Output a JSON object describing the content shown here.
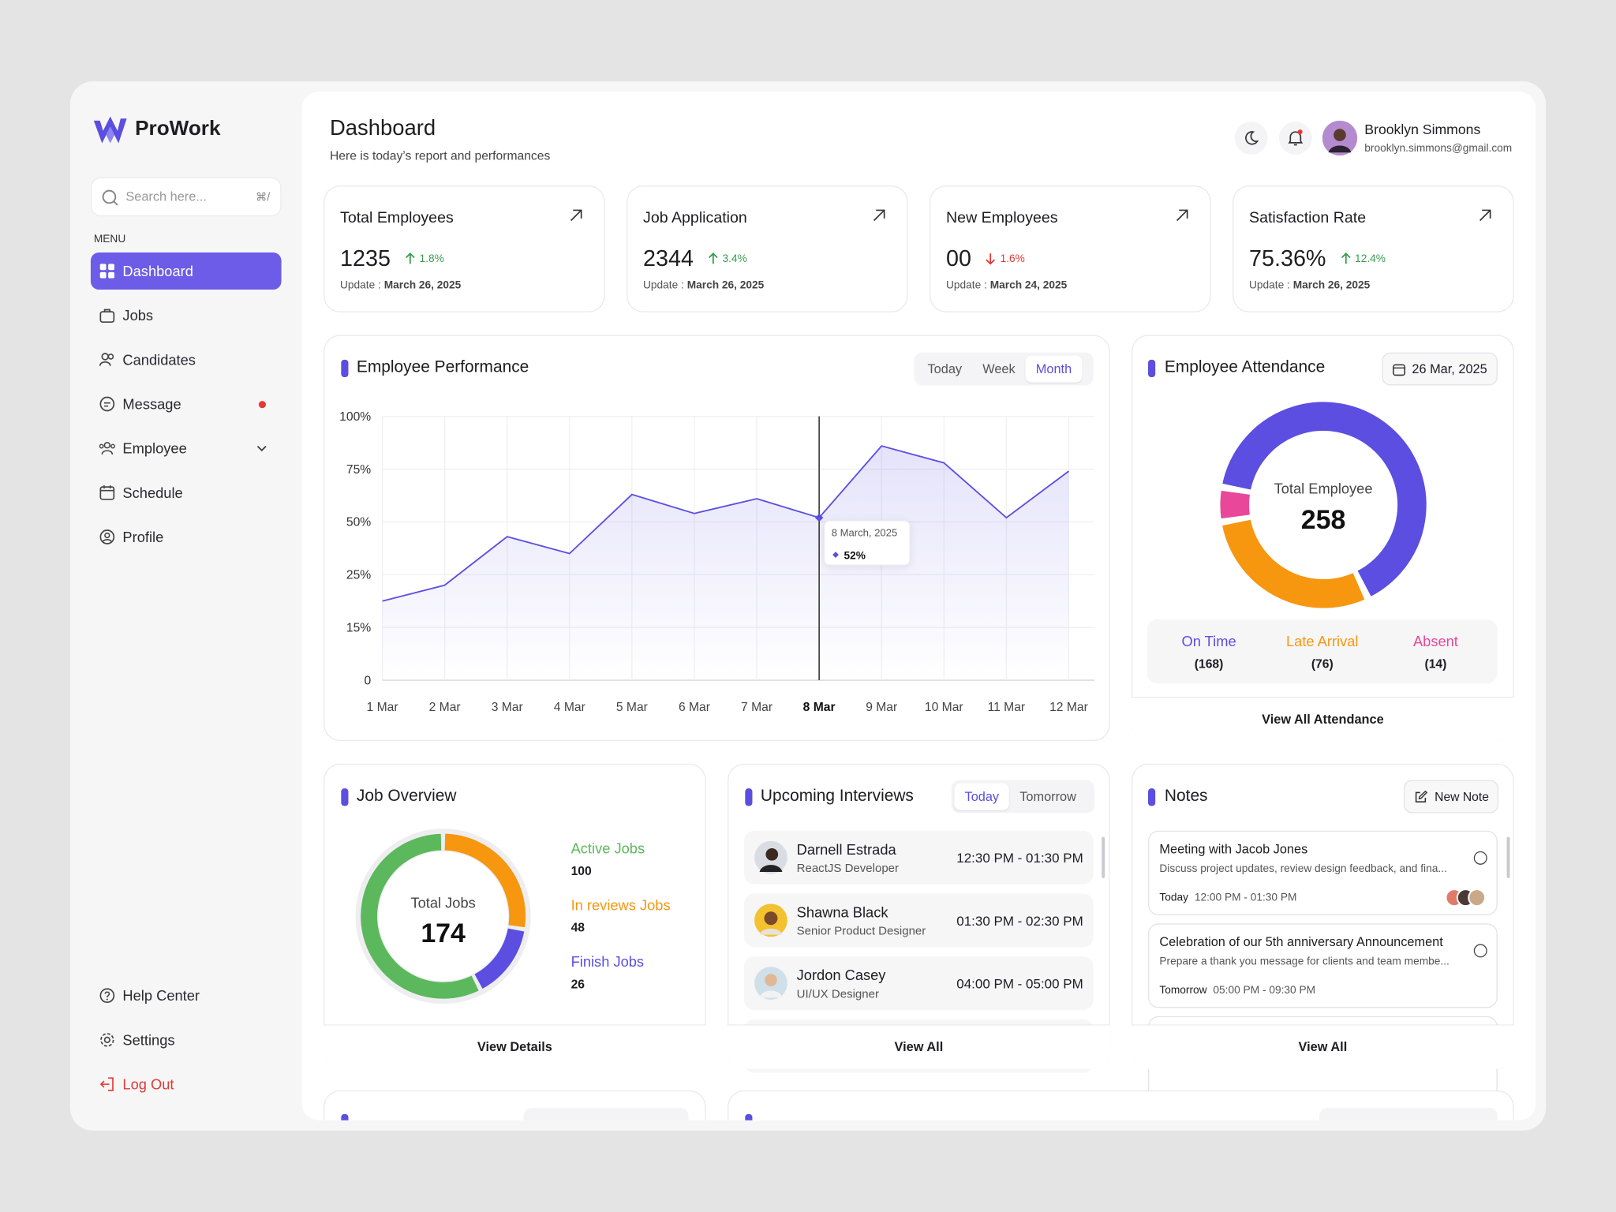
{
  "sidebar": {
    "brand": "ProWork",
    "search_placeholder": "Search here...",
    "search_shortcut": "⌘/",
    "menu_label": "MENU",
    "menu": [
      "Dashboard",
      "Jobs",
      "Candidates",
      "Message",
      "Employee",
      "Schedule",
      "Profile"
    ],
    "footer_menu": [
      "Help Center",
      "Settings",
      "Log Out"
    ]
  },
  "header": {
    "title": "Dashboard",
    "subtitle": "Here is today’s report and performances",
    "user_name": "Brooklyn Simmons",
    "user_email": "brooklyn.simmons@gmail.com"
  },
  "stats": [
    {
      "title": "Total Employees",
      "value": "1235",
      "change": "1.8%",
      "trend": "up",
      "updated_label": "Update :",
      "updated": "March 26, 2025"
    },
    {
      "title": "Job Application",
      "value": "2344",
      "change": "3.4%",
      "trend": "up",
      "updated_label": "Update :",
      "updated": "March 26, 2025"
    },
    {
      "title": "New Employees",
      "value": "00",
      "change": "1.6%",
      "trend": "down",
      "updated_label": "Update :",
      "updated": "March 24, 2025"
    },
    {
      "title": "Satisfaction Rate",
      "value": "75.36%",
      "change": "12.4%",
      "trend": "up",
      "updated_label": "Update :",
      "updated": "March 26, 2025"
    }
  ],
  "performance": {
    "title": "Employee Performance",
    "tabs": [
      "Today",
      "Week",
      "Month"
    ],
    "chart_data": {
      "type": "area",
      "categories": [
        "1 Mar",
        "2 Mar",
        "3 Mar",
        "4 Mar",
        "5 Mar",
        "6 Mar",
        "7 Mar",
        "8 Mar",
        "9 Mar",
        "10 Mar",
        "11 Mar",
        "12 Mar"
      ],
      "values": [
        20,
        23,
        43,
        35,
        63,
        54,
        61,
        52,
        86,
        78,
        52,
        74
      ],
      "value_labels": [
        null,
        null,
        null,
        null,
        null,
        null,
        null,
        "52%",
        null,
        null,
        null,
        null
      ],
      "tooltip_date": "8 March, 2025",
      "color": "#5b4ee0",
      "ylim": [
        0,
        100
      ],
      "yticks": [
        0,
        {
          "value": 15,
          "label": "15%"
        },
        {
          "value": 25,
          "label": "25%"
        },
        {
          "value": 50,
          "label": "50%"
        },
        {
          "value": 75,
          "label": "75%"
        },
        {
          "value": 100,
          "label": "100%"
        }
      ],
      "grid": true
    }
  },
  "attendance": {
    "title": "Employee Attendance",
    "date": "26 Mar, 2025",
    "link": "View All Attendance",
    "chart_data": {
      "type": "donut",
      "categories": [
        "On Time",
        "Late Arrival",
        "Absent"
      ],
      "values": [
        168,
        76,
        14
      ],
      "value_labels": [
        "(168)",
        "(76)",
        "(14)"
      ],
      "colors": [
        "#5b4ee0",
        "#f7960f",
        "#e9479a"
      ],
      "center_label": "Total Employee",
      "center_value": 258
    }
  },
  "job_overview": {
    "title": "Job Overview",
    "link": "View Details",
    "chart_data": {
      "type": "donut",
      "categories": [
        "Active Jobs",
        "In reviews Jobs",
        "Finish Jobs"
      ],
      "values": [
        100,
        48,
        26
      ],
      "colors": [
        "#5cb85c",
        "#f7960f",
        "#5b4ee0"
      ],
      "center_label": "Total Jobs",
      "center_value": 174
    }
  },
  "interviews": {
    "title": "Upcoming Interviews",
    "tabs": [
      "Today",
      "Tomorrow"
    ],
    "items": [
      {
        "name": "Darnell Estrada",
        "role": "ReactJS Developer",
        "time": "12:30 PM - 01:30 PM"
      },
      {
        "name": "Shawna Black",
        "role": "Senior Product Designer",
        "time": "01:30 PM - 02:30 PM"
      },
      {
        "name": "Jordon Casey",
        "role": "UI/UX Designer",
        "time": "04:00 PM - 05:00 PM"
      }
    ],
    "link": "View All"
  },
  "notes": {
    "title": "Notes",
    "button": "New Note",
    "items": [
      {
        "title": "Meeting with Jacob Jones",
        "description": "Discuss project updates, review design feedback, and fina...",
        "day": "Today",
        "time": "12:00 PM - 01:30 PM"
      },
      {
        "title": "Celebration of our 5th anniversary Announcement",
        "description": "Prepare a thank you message for clients and team membe...",
        "day": "Tomorrow",
        "time": "05:00 PM - 09:30 PM"
      }
    ],
    "link": "View All"
  }
}
